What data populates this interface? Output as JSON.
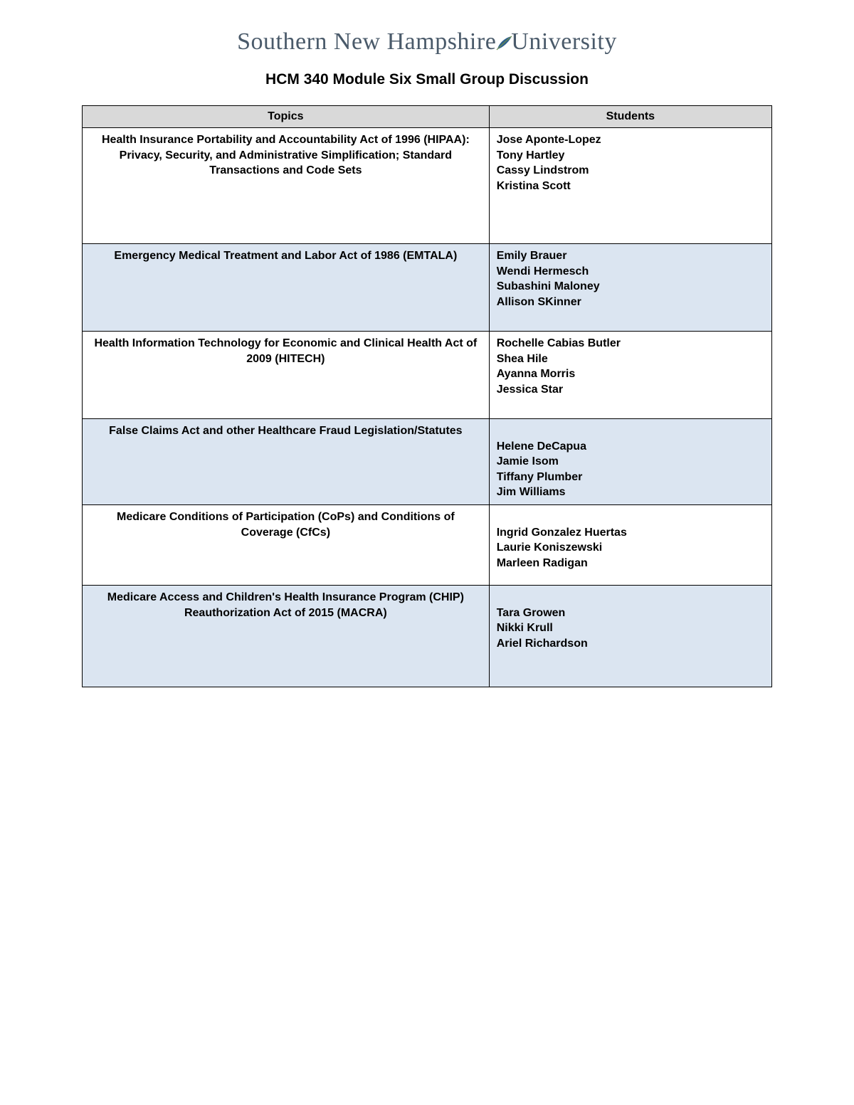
{
  "logo": {
    "prefix": "Southern New Hampshire",
    "suffix": "University",
    "text_color": "#4a5a6a",
    "leaf_fill": "#2d5f8b",
    "leaf_stem": "#6b8b4a"
  },
  "heading": "HCM 340 Module Six Small Group Discussion",
  "table": {
    "header_bg": "#d9d9d9",
    "row_alt_bg": "#dbe5f1",
    "row_bg": "#ffffff",
    "border_color": "#000000",
    "columns": [
      "Topics",
      "Students"
    ],
    "rows": [
      {
        "bg": "white",
        "min_height": 150,
        "topic": "Health Insurance Portability and Accountability Act of 1996 (HIPAA): Privacy, Security, and Administrative Simplification; Standard Transactions and Code Sets",
        "students": [
          "Jose Aponte-Lopez",
          "Tony Hartley",
          "Cassy Lindstrom",
          "Kristina Scott"
        ]
      },
      {
        "bg": "blue",
        "min_height": 110,
        "topic": "Emergency Medical Treatment and Labor Act of 1986 (EMTALA)",
        "students": [
          "Emily Brauer",
          "Wendi Hermesch",
          "Subashini Maloney",
          "Allison SKinner"
        ]
      },
      {
        "bg": "white",
        "min_height": 110,
        "topic": "Health Information Technology for Economic and Clinical Health Act of 2009 (HITECH)",
        "students": [
          "Rochelle Cabias Butler",
          "Shea Hile",
          "Ayanna Morris",
          "Jessica Star"
        ]
      },
      {
        "bg": "blue",
        "min_height": 100,
        "topic": "False Claims Act and other Healthcare Fraud Legislation/Statutes",
        "students_leading_blank": true,
        "students": [
          "Helene DeCapua",
          "Jamie Isom",
          "Tiffany Plumber",
          "Jim Williams"
        ]
      },
      {
        "bg": "white",
        "min_height": 100,
        "topic": "Medicare Conditions of Participation (CoPs) and Conditions of Coverage (CfCs)",
        "students_leading_blank": true,
        "students": [
          "Ingrid Gonzalez Huertas",
          "Laurie Koniszewski",
          "Marleen Radigan"
        ]
      },
      {
        "bg": "blue",
        "min_height": 130,
        "topic": "Medicare Access and Children's Health Insurance Program (CHIP) Reauthorization Act of 2015 (MACRA)",
        "students_leading_blank": true,
        "students": [
          "Tara Growen",
          "Nikki Krull",
          "Ariel Richardson"
        ]
      }
    ]
  }
}
